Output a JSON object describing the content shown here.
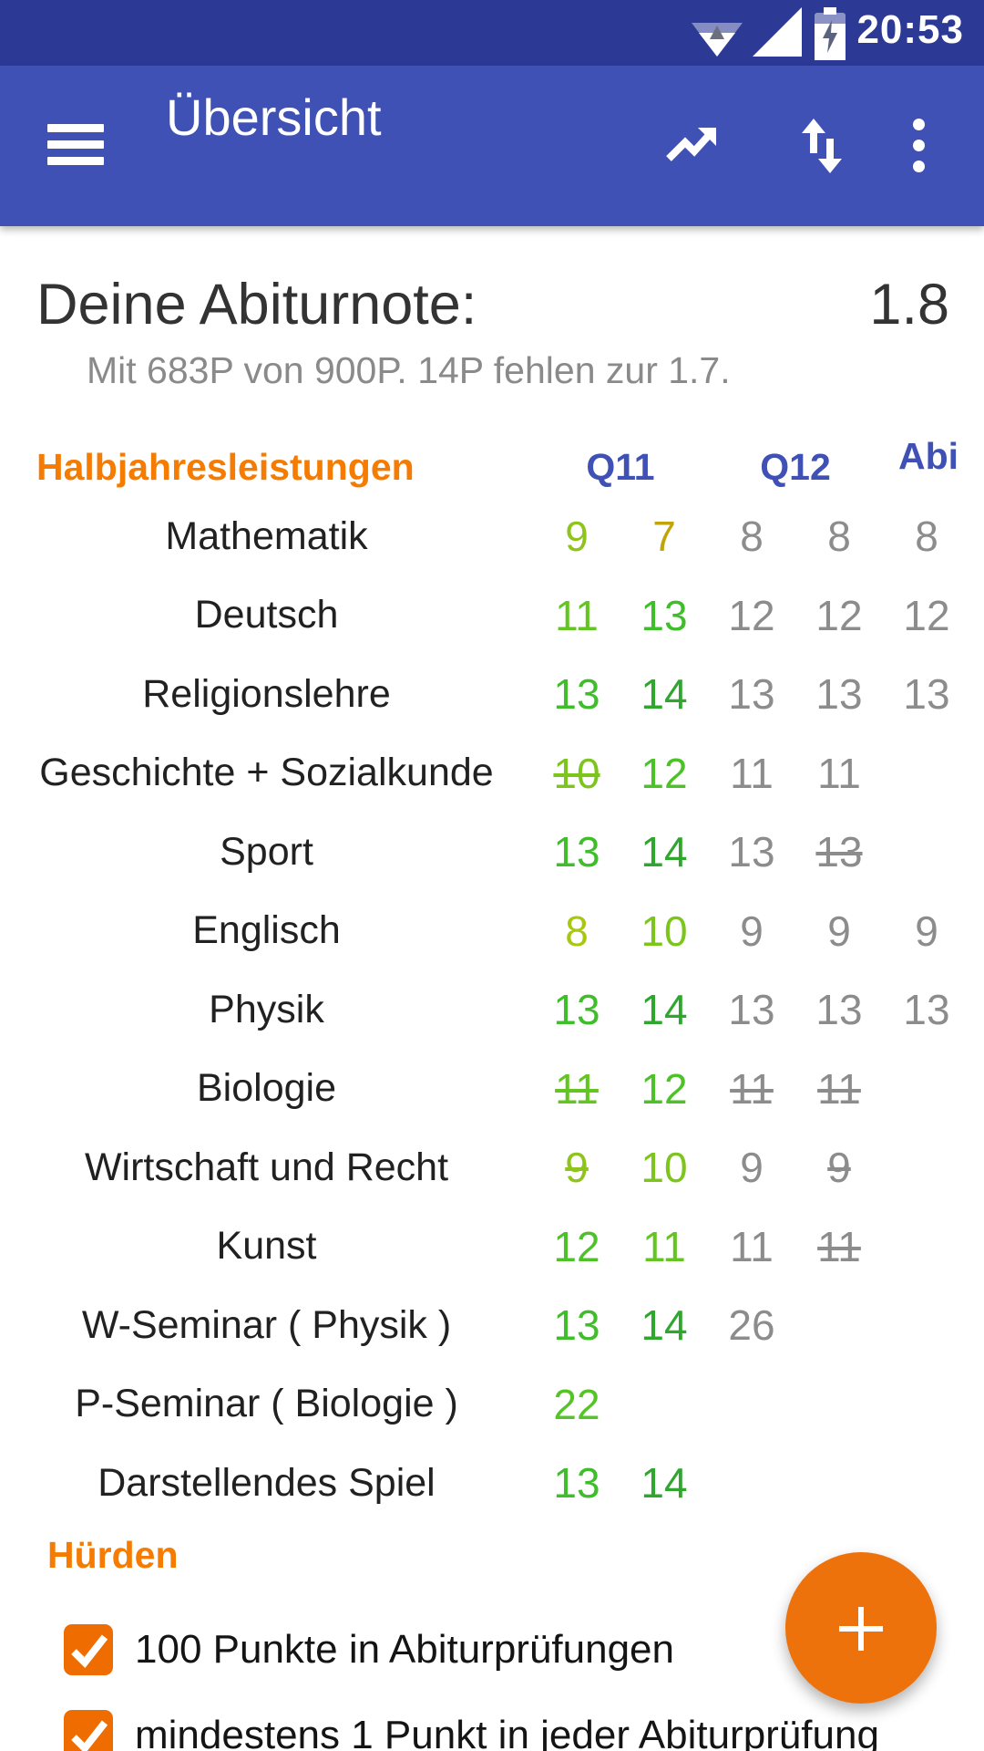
{
  "colors": {
    "status_bar_bg": "#2C3A96",
    "app_bar_bg": "#3F51B5",
    "accent_orange": "#F57C00",
    "control_orange": "#EF6C00",
    "fab_orange": "#EE720C",
    "header_blue": "#3F51B5",
    "inactive_gray": "#8C8C8C"
  },
  "status_bar": {
    "time": "20:53",
    "icons": [
      "wifi-icon",
      "signal-icon",
      "battery-charging-icon"
    ]
  },
  "app_bar": {
    "title": "Übersicht",
    "icons": [
      "menu-icon",
      "trending-up-icon",
      "swap-vertical-icon",
      "overflow-menu-icon"
    ]
  },
  "summary": {
    "label": "Deine Abiturnote:",
    "grade": "1.8",
    "detail": "Mit 683P von 900P. 14P fehlen zur 1.7."
  },
  "table": {
    "header": {
      "label": "Halbjahresleistungen",
      "cols": [
        "Q11",
        "Q12",
        "Abi"
      ]
    },
    "rows": [
      {
        "subject": "Mathematik",
        "cells": [
          {
            "v": "9",
            "c": "#8FC41C"
          },
          {
            "v": "7",
            "c": "#C0A408"
          },
          {
            "v": "8",
            "c": "#8C8C8C"
          },
          {
            "v": "8",
            "c": "#8C8C8C"
          },
          {
            "v": "8",
            "c": "#8C8C8C"
          }
        ]
      },
      {
        "subject": "Deutsch",
        "cells": [
          {
            "v": "11",
            "c": "#63C521"
          },
          {
            "v": "13",
            "c": "#3FBD2B"
          },
          {
            "v": "12",
            "c": "#8C8C8C"
          },
          {
            "v": "12",
            "c": "#8C8C8C"
          },
          {
            "v": "12",
            "c": "#8C8C8C"
          }
        ]
      },
      {
        "subject": "Religionslehre",
        "cells": [
          {
            "v": "13",
            "c": "#3FBD2B"
          },
          {
            "v": "14",
            "c": "#2FA62E"
          },
          {
            "v": "13",
            "c": "#8C8C8C"
          },
          {
            "v": "13",
            "c": "#8C8C8C"
          },
          {
            "v": "13",
            "c": "#8C8C8C"
          }
        ]
      },
      {
        "subject": "Geschichte + Sozialkunde",
        "cells": [
          {
            "v": "10",
            "c": "#7CC51C",
            "strike": true
          },
          {
            "v": "12",
            "c": "#4CC228"
          },
          {
            "v": "11",
            "c": "#8C8C8C"
          },
          {
            "v": "11",
            "c": "#8C8C8C"
          },
          null
        ]
      },
      {
        "subject": "Sport",
        "cells": [
          {
            "v": "13",
            "c": "#3FBD2B"
          },
          {
            "v": "14",
            "c": "#2FA62E"
          },
          {
            "v": "13",
            "c": "#8C8C8C"
          },
          {
            "v": "13",
            "c": "#8C8C8C",
            "strike": true
          },
          null
        ]
      },
      {
        "subject": "Englisch",
        "cells": [
          {
            "v": "8",
            "c": "#A8C70F"
          },
          {
            "v": "10",
            "c": "#7CC51C"
          },
          {
            "v": "9",
            "c": "#8C8C8C"
          },
          {
            "v": "9",
            "c": "#8C8C8C"
          },
          {
            "v": "9",
            "c": "#8C8C8C"
          }
        ]
      },
      {
        "subject": "Physik",
        "cells": [
          {
            "v": "13",
            "c": "#3FBD2B"
          },
          {
            "v": "14",
            "c": "#2FA62E"
          },
          {
            "v": "13",
            "c": "#8C8C8C"
          },
          {
            "v": "13",
            "c": "#8C8C8C"
          },
          {
            "v": "13",
            "c": "#8C8C8C"
          }
        ]
      },
      {
        "subject": "Biologie",
        "cells": [
          {
            "v": "11",
            "c": "#63C521",
            "strike": true
          },
          {
            "v": "12",
            "c": "#4CC228"
          },
          {
            "v": "11",
            "c": "#8C8C8C",
            "strike": true
          },
          {
            "v": "11",
            "c": "#8C8C8C",
            "strike": true
          },
          null
        ]
      },
      {
        "subject": "Wirtschaft und Recht",
        "cells": [
          {
            "v": "9",
            "c": "#8FC41C",
            "strike": true
          },
          {
            "v": "10",
            "c": "#7CC51C"
          },
          {
            "v": "9",
            "c": "#8C8C8C"
          },
          {
            "v": "9",
            "c": "#8C8C8C",
            "strike": true
          },
          null
        ]
      },
      {
        "subject": "Kunst",
        "cells": [
          {
            "v": "12",
            "c": "#4CC228"
          },
          {
            "v": "11",
            "c": "#63C521"
          },
          {
            "v": "11",
            "c": "#8C8C8C"
          },
          {
            "v": "11",
            "c": "#8C8C8C",
            "strike": true
          },
          null
        ]
      },
      {
        "subject": "W-Seminar ( Physik )",
        "cells": [
          {
            "v": "13",
            "c": "#3FBD2B"
          },
          {
            "v": "14",
            "c": "#2FA62E"
          },
          {
            "v": "26",
            "c": "#8C8C8C"
          },
          null,
          null
        ]
      },
      {
        "subject": "P-Seminar ( Biologie )",
        "cells": [
          {
            "v": "22",
            "c": "#55C427"
          },
          null,
          null,
          null,
          null
        ]
      },
      {
        "subject": "Darstellendes Spiel",
        "cells": [
          {
            "v": "13",
            "c": "#3FBD2B"
          },
          {
            "v": "14",
            "c": "#2FA62E"
          },
          null,
          null,
          null
        ]
      }
    ]
  },
  "hurdles": {
    "title": "Hürden",
    "items": [
      {
        "label": "100 Punkte in Abiturprüfungen",
        "checked": true
      },
      {
        "label": "mindestens 1 Punkt in jeder Abiturprüfung",
        "checked": true
      }
    ]
  },
  "fab": {
    "label": "add"
  }
}
